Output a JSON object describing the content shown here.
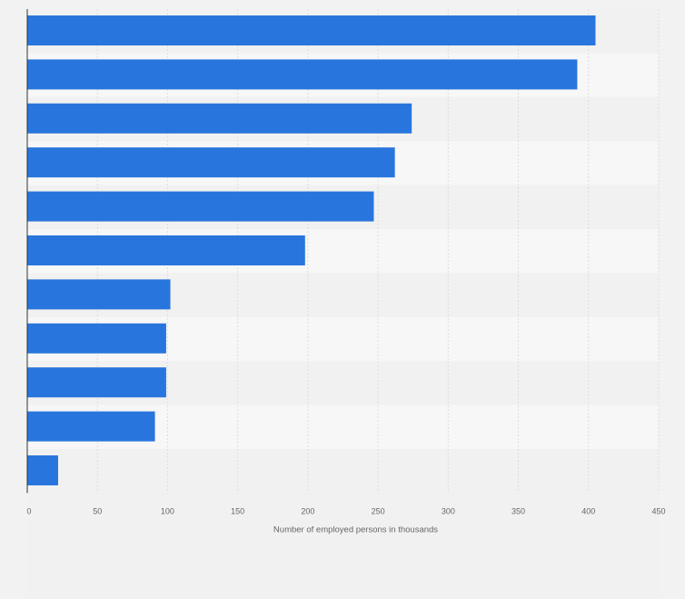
{
  "colors": {
    "background": "#f2f2f2",
    "band_dark": "#f1f1f1",
    "band_light": "#f7f7f7",
    "bar": "#2876dd",
    "gridline": "#dddddd",
    "axis": "#333333"
  },
  "chart_data": {
    "type": "bar",
    "orientation": "horizontal",
    "title": "",
    "xlabel": "Number of employed persons in thousands",
    "ylabel": "",
    "categories": [
      "",
      "",
      "",
      "",
      "",
      "",
      "",
      "",
      "",
      "",
      ""
    ],
    "values": [
      405,
      392,
      274,
      262,
      247,
      198,
      102,
      99,
      99,
      91,
      22
    ],
    "xlim": [
      0,
      450
    ],
    "xticks": [
      0,
      50,
      100,
      150,
      200,
      250,
      300,
      350,
      400,
      450
    ],
    "xtick_labels": [
      "0",
      "50",
      "100",
      "150",
      "200",
      "250",
      "300",
      "350",
      "400",
      "450"
    ],
    "grid": true,
    "legend": "none"
  }
}
